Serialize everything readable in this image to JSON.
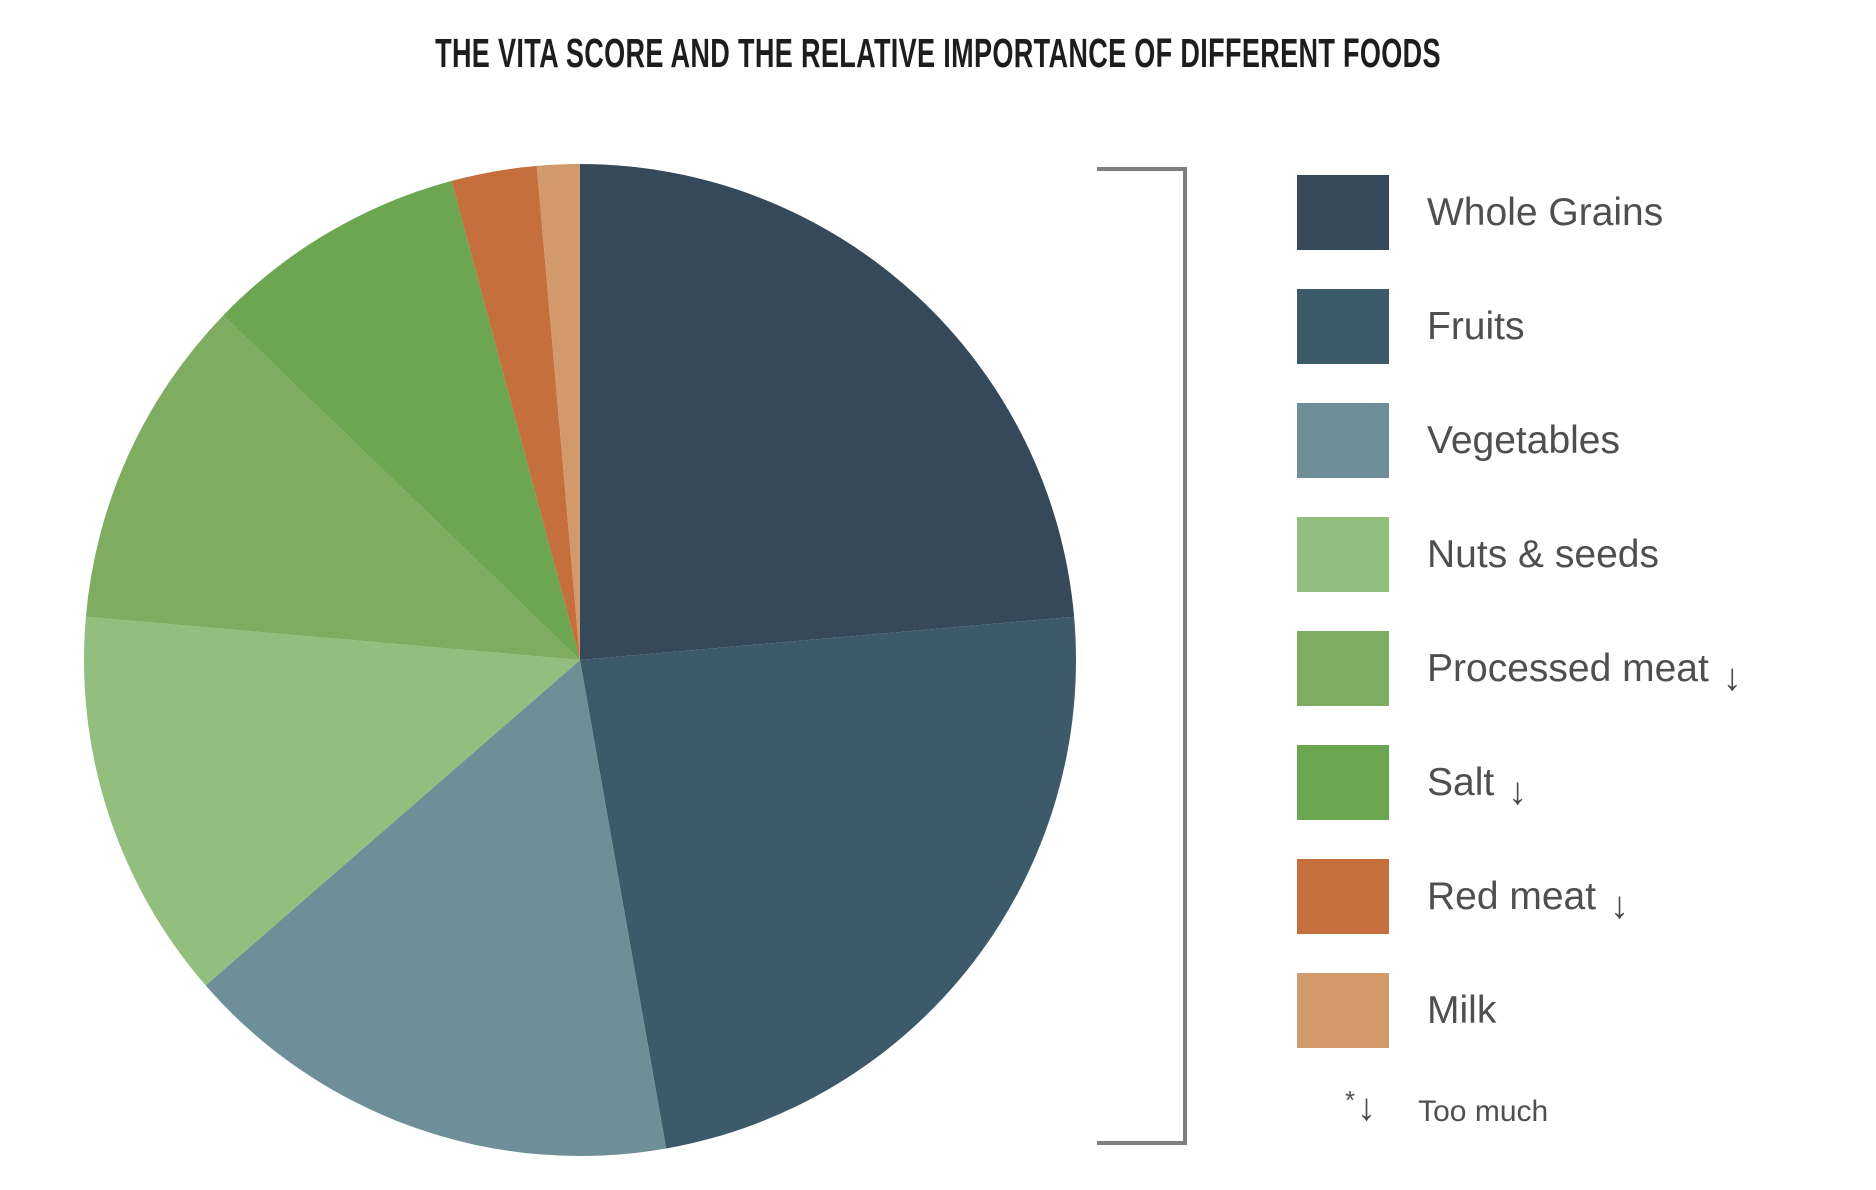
{
  "page": {
    "background": "#ffffff",
    "title": "THE VITA SCORE AND THE RELATIVE IMPORTANCE OF DIFFERENT FOODS",
    "title_color": "#1d1d1d"
  },
  "chart_data": {
    "type": "pie",
    "title": "THE VITA SCORE AND THE RELATIVE IMPORTANCE OF DIFFERENT FOODS",
    "start_angle_deg": 0,
    "direction": "clockwise",
    "categories": [
      "Whole Grains",
      "Fruits",
      "Vegetables",
      "Nuts & seeds",
      "Processed meat",
      "Salt",
      "Red meat",
      "Milk"
    ],
    "values_percent": [
      23.6,
      23.6,
      16.4,
      12.8,
      10.8,
      8.6,
      2.8,
      1.4
    ],
    "angles_deg": [
      85,
      85,
      59,
      46,
      39,
      31,
      10,
      5
    ],
    "colors": [
      "#35495B",
      "#3D5A6B",
      "#6E8E98",
      "#92BF7D",
      "#7EAD61",
      "#6CA650",
      "#C56F3D",
      "#D29A6B"
    ],
    "too_much_arrow": [
      false,
      false,
      false,
      false,
      true,
      true,
      true,
      false
    ],
    "legend_position": "right",
    "grid": false
  },
  "legend": {
    "arrow_glyph": "↓",
    "arrow_color": "#47494d",
    "label_color": "#4f4f4f",
    "footnote": {
      "marker": "*",
      "arrow": "↓",
      "text": "Too much"
    }
  },
  "decor": {
    "bracket_color": "#7f7f7f"
  }
}
